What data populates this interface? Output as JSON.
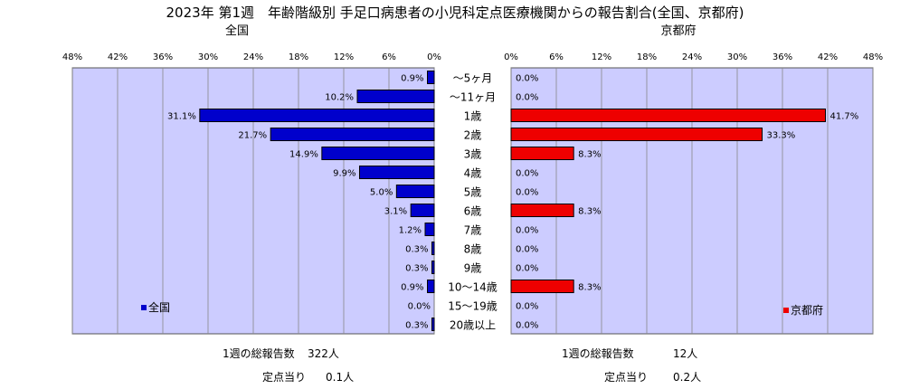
{
  "title": "2023年 第1週　年齢階級別 手足口病患者の小児科定点医療機関からの報告割合(全国、京都府)",
  "categories": [
    "～5ヶ月",
    "～11ヶ月",
    "1歳",
    "2歳",
    "3歳",
    "4歳",
    "5歳",
    "6歳",
    "7歳",
    "8歳",
    "9歳",
    "10～14歳",
    "15～19歳",
    "20歳以上"
  ],
  "chart_data": [
    {
      "type": "bar",
      "orientation": "horizontal",
      "direction": "right-to-left",
      "subtitle": "全国",
      "series": [
        {
          "name": "全国",
          "values": [
            0.9,
            10.2,
            31.1,
            21.7,
            14.9,
            9.9,
            5.0,
            3.1,
            1.2,
            0.3,
            0.3,
            0.9,
            0.0,
            0.3
          ]
        }
      ],
      "value_labels": [
        "0.9%",
        "10.2%",
        "31.1%",
        "21.7%",
        "14.9%",
        "9.9%",
        "5.0%",
        "3.1%",
        "1.2%",
        "0.3%",
        "0.3%",
        "0.9%",
        "0.0%",
        "0.3%"
      ],
      "ticks": [
        "48%",
        "42%",
        "36%",
        "30%",
        "24%",
        "18%",
        "12%",
        "6%",
        "0%"
      ],
      "xlim": [
        0,
        48
      ],
      "grid": true,
      "legend": "bottom-left",
      "color": "#0000cc"
    },
    {
      "type": "bar",
      "orientation": "horizontal",
      "direction": "left-to-right",
      "subtitle": "京都府",
      "series": [
        {
          "name": "京都府",
          "values": [
            0.0,
            0.0,
            41.7,
            33.3,
            8.3,
            0.0,
            0.0,
            8.3,
            0.0,
            0.0,
            0.0,
            8.3,
            0.0,
            0.0
          ]
        }
      ],
      "value_labels": [
        "0.0%",
        "0.0%",
        "41.7%",
        "33.3%",
        "8.3%",
        "0.0%",
        "0.0%",
        "8.3%",
        "0.0%",
        "0.0%",
        "0.0%",
        "8.3%",
        "0.0%",
        "0.0%"
      ],
      "ticks": [
        "0%",
        "6%",
        "12%",
        "18%",
        "24%",
        "30%",
        "36%",
        "42%",
        "48%"
      ],
      "xlim": [
        0,
        48
      ],
      "grid": true,
      "legend": "bottom-right",
      "color": "#ee0000"
    }
  ],
  "footer": {
    "national": {
      "total_label": "1週の総報告数",
      "total_value": "322人",
      "per_label": "定点当り",
      "per_value": "0.1人"
    },
    "kyoto": {
      "total_label": "1週の総報告数",
      "total_value": "12人",
      "per_label": "定点当り",
      "per_value": "0.2人"
    }
  },
  "colors": {
    "plot_bg": "#ccccff",
    "national_bar": "#0000cc",
    "kyoto_bar": "#ee0000"
  }
}
